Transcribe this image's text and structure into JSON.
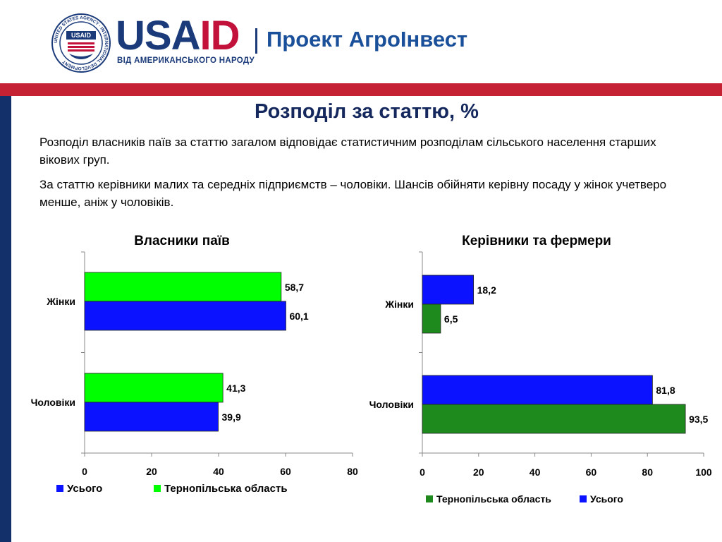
{
  "header": {
    "logo_usa": "USA",
    "logo_id": "ID",
    "logo_tagline": "ВІД АМЕРИКАНСЬКОГО НАРОДУ",
    "project_name": "Проект АгроІнвест",
    "seal_text": "UNITED STATES AGENCY · INTERNATIONAL DEVELOPMENT",
    "seal_inner": "USAID"
  },
  "colors": {
    "navy": "#1a3a7a",
    "red": "#c2113a",
    "blue_bar": "#0a12ff",
    "bright_green_bar": "#00ff00",
    "dark_green_bar": "#1e8a1e"
  },
  "page": {
    "title": "Розподіл за статтю, %",
    "paragraph1": "Розподіл власників паїв за статтю загалом відповідає статистичним розподілам сільського населення старших вікових груп.",
    "paragraph2": "За статтю керівники малих та середніх підприємств – чоловіки. Шансів обійняти керівну посаду у жінок учетверо менше, аніж у чоловіків."
  },
  "chart_data": [
    {
      "type": "bar",
      "orientation": "horizontal",
      "title": "Власники паїв",
      "categories": [
        "Жінки",
        "Чоловіки"
      ],
      "series": [
        {
          "name": "Усього",
          "color": "#0a12ff",
          "values": [
            60.1,
            39.9
          ],
          "labels": [
            "60,1",
            "39,9"
          ]
        },
        {
          "name": "Тернопільська область",
          "color": "#00ff00",
          "values": [
            58.7,
            41.3
          ],
          "labels": [
            "58,7",
            "41,3"
          ]
        }
      ],
      "xlim": [
        0,
        80
      ],
      "xticks": [
        "0",
        "20",
        "40",
        "60",
        "80"
      ],
      "legend": [
        "Усього",
        "Тернопільська область"
      ],
      "legend_position": "bottom",
      "grid": false
    },
    {
      "type": "bar",
      "orientation": "horizontal",
      "title": "Керівники та фермери",
      "categories": [
        "Жінки",
        "Чоловіки"
      ],
      "series": [
        {
          "name": "Тернопільська область",
          "color": "#1e8a1e",
          "values": [
            6.5,
            93.5
          ],
          "labels": [
            "6,5",
            "93,5"
          ]
        },
        {
          "name": "Усього",
          "color": "#0a12ff",
          "values": [
            18.2,
            81.8
          ],
          "labels": [
            "18,2",
            "81,8"
          ]
        }
      ],
      "xlim": [
        0,
        100
      ],
      "xticks": [
        "0",
        "20",
        "40",
        "60",
        "80",
        "100"
      ],
      "legend": [
        "Тернопільська область",
        "Усього"
      ],
      "legend_position": "bottom",
      "grid": false
    }
  ]
}
